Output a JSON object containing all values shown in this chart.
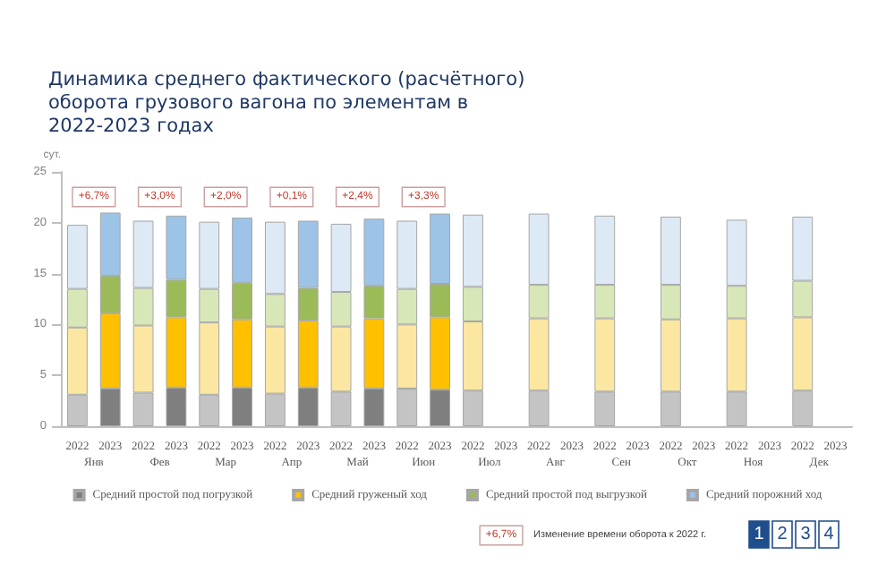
{
  "chart_data": {
    "type": "bar",
    "stacked": true,
    "title": "Динамика среднего фактического (расчётного) оборота грузового вагона по элементам в 2022-2023 годах",
    "ylabel": "сут.",
    "categories": [
      "2022",
      "2023",
      "2022",
      "2023",
      "2022",
      "2023",
      "2022",
      "2023",
      "2022",
      "2023",
      "2022",
      "2023",
      "2022",
      "2023",
      "2022",
      "2023",
      "2022",
      "2023",
      "2022",
      "2023",
      "2022",
      "2023",
      "2022",
      "2023"
    ],
    "series": [
      {
        "name": "Средний простой под погрузкой",
        "color": "#7f7f7f",
        "colors": [
          "#c4c4c4",
          "#7f7f7f",
          "#c4c4c4",
          "#7f7f7f",
          "#c4c4c4",
          "#7f7f7f",
          "#c4c4c4",
          "#7f7f7f",
          "#c4c4c4",
          "#7f7f7f",
          "#c4c4c4",
          "#7f7f7f",
          "#c4c4c4",
          "#7f7f7f",
          "#c4c4c4",
          "#7f7f7f",
          "#c4c4c4",
          "#7f7f7f",
          "#c4c4c4",
          "#7f7f7f",
          "#c4c4c4",
          "#7f7f7f",
          "#c4c4c4",
          "#7f7f7f"
        ],
        "values": [
          3.1,
          3.7,
          3.3,
          3.8,
          3.1,
          3.8,
          3.2,
          3.8,
          3.4,
          3.7,
          3.7,
          3.6,
          3.5,
          null,
          3.5,
          null,
          3.4,
          null,
          3.4,
          null,
          3.4,
          null,
          3.5,
          null
        ]
      },
      {
        "name": "Средний груженый ход",
        "color": "#ffc000",
        "colors": [
          "#fbe7a1",
          "#ffc000",
          "#fbe7a1",
          "#ffc000",
          "#fbe7a1",
          "#ffc000",
          "#fbe7a1",
          "#ffc000",
          "#fbe7a1",
          "#ffc000",
          "#fbe7a1",
          "#ffc000",
          "#fbe7a1",
          "#ffc000",
          "#fbe7a1",
          "#ffc000",
          "#fbe7a1",
          "#ffc000",
          "#fbe7a1",
          "#ffc000",
          "#fbe7a1",
          "#ffc000",
          "#fbe7a1",
          "#ffc000"
        ],
        "values": [
          6.6,
          7.4,
          6.6,
          6.9,
          7.1,
          6.7,
          6.6,
          6.6,
          6.4,
          6.9,
          6.3,
          7.1,
          6.8,
          null,
          7.1,
          null,
          7.2,
          null,
          7.1,
          null,
          7.2,
          null,
          7.2,
          null
        ]
      },
      {
        "name": "Средний простой под выгрузкой",
        "color": "#9bbb59",
        "colors": [
          "#d8e7b8",
          "#9bbb59",
          "#d8e7b8",
          "#9bbb59",
          "#d8e7b8",
          "#9bbb59",
          "#d8e7b8",
          "#9bbb59",
          "#d8e7b8",
          "#9bbb59",
          "#d8e7b8",
          "#9bbb59",
          "#d8e7b8",
          "#9bbb59",
          "#d8e7b8",
          "#9bbb59",
          "#d8e7b8",
          "#9bbb59",
          "#d8e7b8",
          "#9bbb59",
          "#d8e7b8",
          "#9bbb59",
          "#d8e7b8",
          "#9bbb59"
        ],
        "values": [
          3.8,
          3.7,
          3.7,
          3.7,
          3.3,
          3.6,
          3.2,
          3.2,
          3.4,
          3.2,
          3.5,
          3.3,
          3.4,
          null,
          3.3,
          null,
          3.3,
          null,
          3.4,
          null,
          3.2,
          null,
          3.6,
          null
        ]
      },
      {
        "name": "Средний порожний ход",
        "color": "#9dc3e6",
        "colors": [
          "#dde9f5",
          "#9dc3e6",
          "#dde9f5",
          "#9dc3e6",
          "#dde9f5",
          "#9dc3e6",
          "#dde9f5",
          "#9dc3e6",
          "#dde9f5",
          "#9dc3e6",
          "#dde9f5",
          "#9dc3e6",
          "#dde9f5",
          "#9dc3e6",
          "#dde9f5",
          "#9dc3e6",
          "#dde9f5",
          "#9dc3e6",
          "#dde9f5",
          "#9dc3e6",
          "#dde9f5",
          "#9dc3e6",
          "#dde9f5",
          "#9dc3e6"
        ],
        "values": [
          6.3,
          6.2,
          6.6,
          6.3,
          6.6,
          6.4,
          7.1,
          6.6,
          6.7,
          6.6,
          6.7,
          6.9,
          7.1,
          null,
          7.0,
          null,
          6.8,
          null,
          6.7,
          null,
          6.5,
          null,
          6.3,
          null
        ]
      }
    ],
    "ylim": [
      0,
      25
    ],
    "yticks": [
      0,
      5,
      10,
      15,
      20,
      25
    ],
    "legend": "bottom",
    "annotations": [
      "Янв",
      "Фев",
      "Мар",
      "Апр",
      "Май",
      "Июн",
      "Июл",
      "Авг",
      "Сен",
      "Окт",
      "Ноя",
      "Дек",
      "+6,7%",
      "+3,0%",
      "+2,0%",
      "+0,1%",
      "+2,4%",
      "+3,3%",
      "+6,7%",
      "Изменение времени оборота к 2022 г.",
      "1",
      "2",
      "3",
      "4"
    ]
  }
}
